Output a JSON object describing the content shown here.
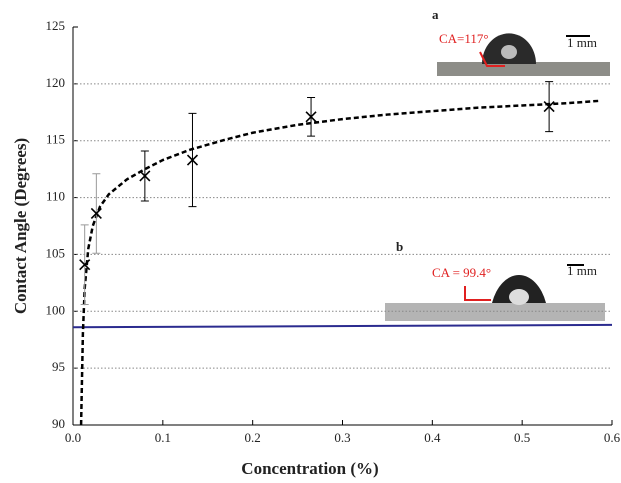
{
  "chart_data": {
    "type": "scatter",
    "x_label": "Concentration (%)",
    "y_label": "Contact Angle (Degrees)",
    "xlim": [
      0,
      0.6
    ],
    "ylim": [
      90,
      125
    ],
    "xticks": [
      {
        "value": 0,
        "label": "0.0"
      },
      0.1,
      0.2,
      0.3,
      0.4,
      0.5,
      0.6
    ],
    "yticks": [
      90,
      95,
      100,
      105,
      110,
      115,
      120,
      125
    ],
    "grid": true,
    "points": {
      "color": "#000000",
      "x": [
        0.013,
        0.026,
        0.08,
        0.133,
        0.265,
        0.53
      ],
      "values": [
        104.1,
        108.6,
        111.9,
        113.3,
        117.1,
        118.0
      ],
      "errors": [
        3.5,
        3.5,
        2.2,
        4.1,
        1.7,
        2.2
      ]
    },
    "fit": {
      "color": "#000000",
      "x": [
        0.009,
        0.011,
        0.013,
        0.017,
        0.022,
        0.03,
        0.04,
        0.06,
        0.08,
        0.1,
        0.13,
        0.17,
        0.2,
        0.25,
        0.3,
        0.35,
        0.4,
        0.45,
        0.5,
        0.55,
        0.585
      ],
      "values": [
        90,
        98,
        102,
        105.5,
        107.5,
        109.2,
        110.3,
        111.6,
        112.5,
        113.3,
        114.2,
        115.1,
        115.7,
        116.4,
        116.9,
        117.3,
        117.6,
        117.9,
        118.1,
        118.3,
        118.5
      ]
    },
    "baseline": {
      "color": "#2b2b8f",
      "x": [
        0.0,
        0.6
      ],
      "values": [
        98.6,
        98.8
      ]
    },
    "inset_a": {
      "label": "a",
      "angle": "CA=117°",
      "scale": "1 mm"
    },
    "inset_b": {
      "label": "b",
      "angle": "CA = 99.4°",
      "scale": "1 mm"
    }
  }
}
